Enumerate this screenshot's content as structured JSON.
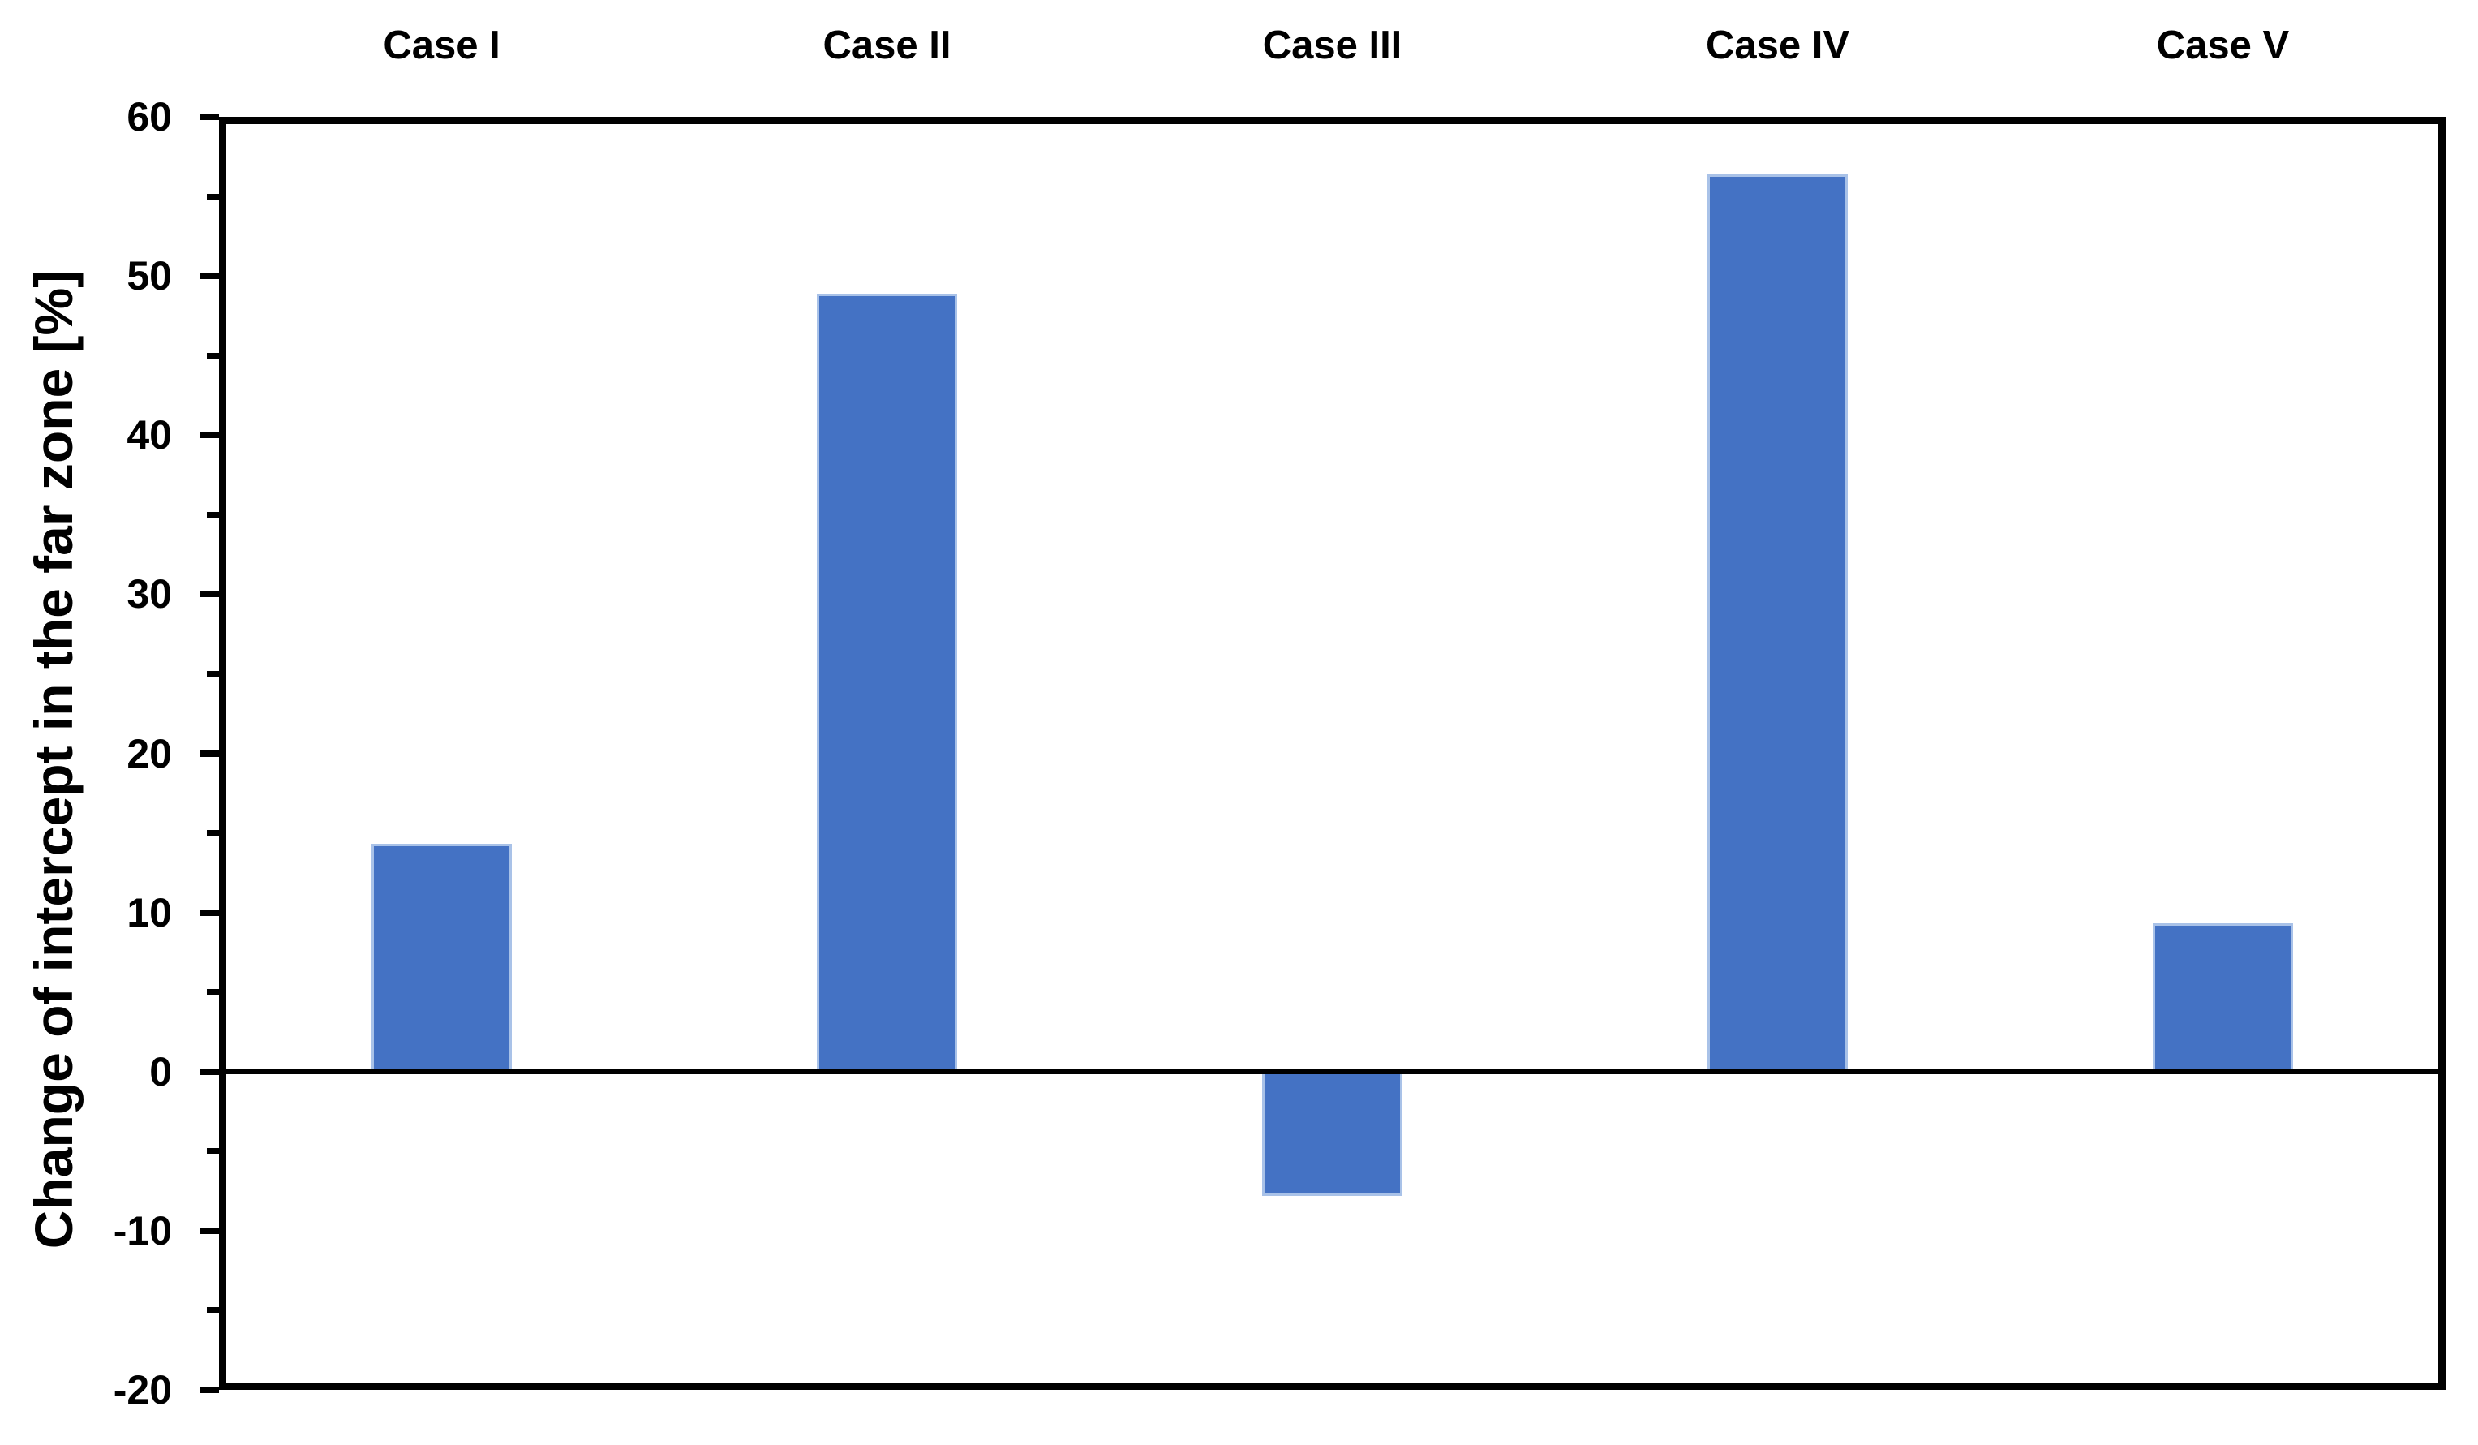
{
  "chart_data": {
    "type": "bar",
    "categories": [
      "Case I",
      "Case II",
      "Case III",
      "Case IV",
      "Case V"
    ],
    "values": [
      14.3,
      48.9,
      -7.8,
      56.4,
      9.3
    ],
    "title": "",
    "xlabel": "",
    "ylabel": "Change of intercept in the far zone [%]",
    "ylim": [
      -20,
      60
    ],
    "y_major_ticks": [
      60,
      50,
      40,
      30,
      20,
      10,
      0,
      -10,
      -20
    ],
    "y_tick_labels": [
      "60",
      "50",
      "40",
      "30",
      "20",
      "10",
      "0",
      "-10",
      "-20"
    ],
    "y_minor_ticks": [
      55,
      45,
      35,
      25,
      15,
      5,
      -5,
      -15
    ],
    "category_labels_position": "top",
    "grid": false,
    "legend_position": "none",
    "bar_color": "#4472C4",
    "bar_border_color": "#A9C2E8",
    "axis_color": "#000000",
    "text_color": "#000000",
    "background_color": "#FFFFFF"
  }
}
